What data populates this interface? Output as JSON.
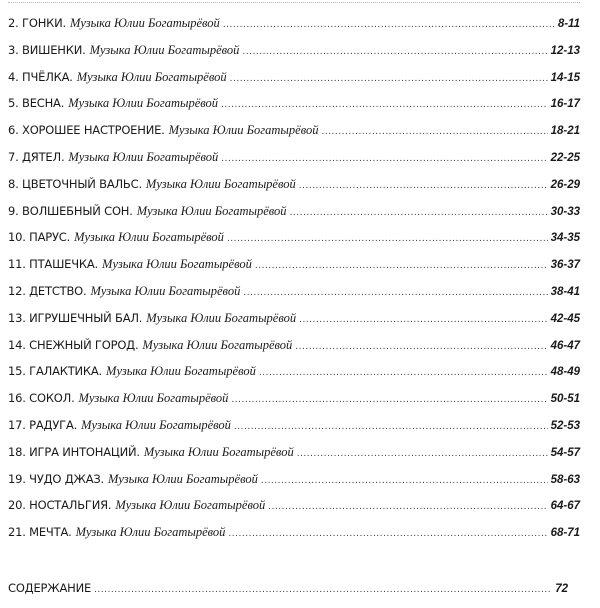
{
  "author": "Музыка Юлии Богатырёвой",
  "items": [
    {
      "title": "2. ГОНКИ.",
      "pages": "8-11"
    },
    {
      "title": "3. ВИШЕНКИ.",
      "pages": "12-13"
    },
    {
      "title": "4. ПЧЁЛКА.",
      "pages": "14-15"
    },
    {
      "title": "5. ВЕСНА.",
      "pages": "16-17"
    },
    {
      "title": "6. ХОРОШЕЕ НАСТРОЕНИЕ.",
      "pages": "18-21"
    },
    {
      "title": "7. ДЯТЕЛ.",
      "pages": "22-25"
    },
    {
      "title": "8. ЦВЕТОЧНЫЙ ВАЛЬС.",
      "pages": "26-29"
    },
    {
      "title": "9. ВОЛШЕБНЫЙ СОН.",
      "pages": "30-33"
    },
    {
      "title": "10. ПАРУС.",
      "pages": "34-35"
    },
    {
      "title": "11. ПТАШЕЧКА.",
      "pages": "36-37"
    },
    {
      "title": "12. ДЕТСТВО.",
      "pages": "38-41"
    },
    {
      "title": "13. ИГРУШЕЧНЫЙ БАЛ.",
      "pages": "42-45"
    },
    {
      "title": "14. СНЕЖНЫЙ ГОРОД.",
      "pages": "46-47"
    },
    {
      "title": "15. ГАЛАКТИКА.",
      "pages": "48-49"
    },
    {
      "title": "16. СОКОЛ.",
      "pages": "50-51"
    },
    {
      "title": "17. РАДУГА.",
      "pages": "52-53"
    },
    {
      "title": "18. ИГРА ИНТОНАЦИЙ.",
      "pages": "54-57"
    },
    {
      "title": "19. ЧУДО ДЖАЗ.",
      "pages": "58-63"
    },
    {
      "title": "20. НОСТАЛЬГИЯ.",
      "pages": "64-67"
    },
    {
      "title": "21. МЕЧТА.",
      "pages": "68-71"
    }
  ],
  "contents": {
    "title": "СОДЕРЖАНИЕ",
    "pages": "72"
  }
}
